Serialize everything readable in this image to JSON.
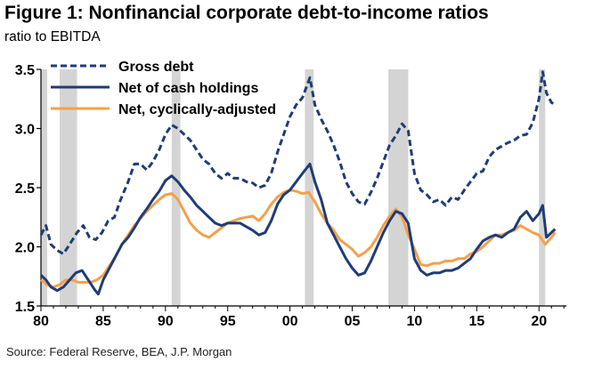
{
  "title": "Figure 1: Nonfinancial corporate debt-to-income ratios",
  "subtitle": "ratio to EBITDA",
  "source": "Source: Federal Reserve, BEA, J.P. Morgan",
  "chart_data": {
    "type": "line",
    "title": "Figure 1: Nonfinancial corporate debt-to-income ratios",
    "ylabel": "ratio to EBITDA",
    "xlim": [
      1980,
      2022.2
    ],
    "ylim": [
      1.5,
      3.5
    ],
    "grid": false,
    "legend_position": "top-left",
    "x_ticks": [
      {
        "value": 1980,
        "label": "80"
      },
      {
        "value": 1985,
        "label": "85"
      },
      {
        "value": 1990,
        "label": "90"
      },
      {
        "value": 1995,
        "label": "95"
      },
      {
        "value": 2000,
        "label": "00"
      },
      {
        "value": 2005,
        "label": "05"
      },
      {
        "value": 2010,
        "label": "10"
      },
      {
        "value": 2015,
        "label": "15"
      },
      {
        "value": 2020,
        "label": "20"
      }
    ],
    "y_ticks": [
      {
        "value": 1.5,
        "label": "1.5"
      },
      {
        "value": 2.0,
        "label": "2.0"
      },
      {
        "value": 2.5,
        "label": "2.5"
      },
      {
        "value": 3.0,
        "label": "3.0"
      },
      {
        "value": 3.5,
        "label": "3.5"
      }
    ],
    "recessions": [
      [
        1980.0,
        1980.5
      ],
      [
        1981.5,
        1982.9
      ],
      [
        1990.5,
        1991.2
      ],
      [
        2001.2,
        2001.9
      ],
      [
        2007.9,
        2009.5
      ],
      [
        2020.0,
        2020.5
      ]
    ],
    "series": [
      {
        "name": "Gross debt",
        "color": "#1f3c78",
        "style": "dashed",
        "points": [
          [
            1980.0,
            2.1
          ],
          [
            1980.4,
            2.18
          ],
          [
            1980.8,
            2.02
          ],
          [
            1981.3,
            1.97
          ],
          [
            1981.8,
            1.94
          ],
          [
            1982.3,
            2.02
          ],
          [
            1982.9,
            2.12
          ],
          [
            1983.4,
            2.18
          ],
          [
            1983.9,
            2.08
          ],
          [
            1984.4,
            2.06
          ],
          [
            1984.9,
            2.12
          ],
          [
            1985.4,
            2.22
          ],
          [
            1985.9,
            2.25
          ],
          [
            1986.4,
            2.4
          ],
          [
            1987.0,
            2.55
          ],
          [
            1987.5,
            2.7
          ],
          [
            1988.0,
            2.7
          ],
          [
            1988.5,
            2.65
          ],
          [
            1989.0,
            2.72
          ],
          [
            1989.5,
            2.82
          ],
          [
            1990.0,
            2.95
          ],
          [
            1990.5,
            3.03
          ],
          [
            1991.0,
            3.0
          ],
          [
            1991.5,
            2.95
          ],
          [
            1992.0,
            2.9
          ],
          [
            1992.5,
            2.82
          ],
          [
            1993.0,
            2.74
          ],
          [
            1993.5,
            2.7
          ],
          [
            1994.0,
            2.62
          ],
          [
            1994.5,
            2.58
          ],
          [
            1995.0,
            2.62
          ],
          [
            1995.5,
            2.58
          ],
          [
            1996.0,
            2.58
          ],
          [
            1996.5,
            2.55
          ],
          [
            1997.0,
            2.54
          ],
          [
            1997.5,
            2.5
          ],
          [
            1998.0,
            2.52
          ],
          [
            1998.5,
            2.62
          ],
          [
            1999.0,
            2.8
          ],
          [
            1999.5,
            2.95
          ],
          [
            2000.0,
            3.1
          ],
          [
            2000.5,
            3.2
          ],
          [
            2001.0,
            3.26
          ],
          [
            2001.6,
            3.43
          ],
          [
            2002.0,
            3.2
          ],
          [
            2002.5,
            3.08
          ],
          [
            2003.0,
            2.98
          ],
          [
            2003.5,
            2.86
          ],
          [
            2004.0,
            2.72
          ],
          [
            2004.5,
            2.55
          ],
          [
            2005.0,
            2.45
          ],
          [
            2005.5,
            2.38
          ],
          [
            2006.0,
            2.36
          ],
          [
            2006.5,
            2.46
          ],
          [
            2007.0,
            2.58
          ],
          [
            2007.5,
            2.72
          ],
          [
            2008.0,
            2.86
          ],
          [
            2008.5,
            2.94
          ],
          [
            2009.0,
            3.04
          ],
          [
            2009.5,
            2.98
          ],
          [
            2010.0,
            2.62
          ],
          [
            2010.5,
            2.48
          ],
          [
            2011.0,
            2.44
          ],
          [
            2011.5,
            2.38
          ],
          [
            2012.0,
            2.4
          ],
          [
            2012.5,
            2.35
          ],
          [
            2013.0,
            2.42
          ],
          [
            2013.5,
            2.4
          ],
          [
            2014.0,
            2.48
          ],
          [
            2014.5,
            2.55
          ],
          [
            2015.0,
            2.62
          ],
          [
            2015.5,
            2.64
          ],
          [
            2016.0,
            2.76
          ],
          [
            2016.5,
            2.82
          ],
          [
            2017.0,
            2.85
          ],
          [
            2017.5,
            2.88
          ],
          [
            2018.0,
            2.9
          ],
          [
            2018.5,
            2.94
          ],
          [
            2019.0,
            2.95
          ],
          [
            2019.5,
            3.05
          ],
          [
            2020.0,
            3.25
          ],
          [
            2020.3,
            3.48
          ],
          [
            2020.6,
            3.3
          ],
          [
            2021.0,
            3.22
          ],
          [
            2021.3,
            3.2
          ]
        ]
      },
      {
        "name": "Net of cash holdings",
        "color": "#1f3c78",
        "style": "solid",
        "points": [
          [
            1980.0,
            1.76
          ],
          [
            1980.4,
            1.72
          ],
          [
            1980.8,
            1.66
          ],
          [
            1981.3,
            1.63
          ],
          [
            1981.8,
            1.66
          ],
          [
            1982.3,
            1.72
          ],
          [
            1982.8,
            1.78
          ],
          [
            1983.3,
            1.8
          ],
          [
            1983.8,
            1.72
          ],
          [
            1984.3,
            1.64
          ],
          [
            1984.6,
            1.6
          ],
          [
            1985.0,
            1.72
          ],
          [
            1985.5,
            1.82
          ],
          [
            1986.0,
            1.92
          ],
          [
            1986.5,
            2.02
          ],
          [
            1987.0,
            2.08
          ],
          [
            1987.5,
            2.16
          ],
          [
            1988.0,
            2.25
          ],
          [
            1988.5,
            2.32
          ],
          [
            1989.0,
            2.4
          ],
          [
            1989.5,
            2.47
          ],
          [
            1990.0,
            2.56
          ],
          [
            1990.5,
            2.6
          ],
          [
            1991.0,
            2.55
          ],
          [
            1991.5,
            2.48
          ],
          [
            1992.0,
            2.42
          ],
          [
            1992.5,
            2.35
          ],
          [
            1993.0,
            2.3
          ],
          [
            1993.5,
            2.25
          ],
          [
            1994.0,
            2.2
          ],
          [
            1994.5,
            2.18
          ],
          [
            1995.0,
            2.2
          ],
          [
            1995.5,
            2.2
          ],
          [
            1996.0,
            2.2
          ],
          [
            1996.5,
            2.17
          ],
          [
            1997.0,
            2.14
          ],
          [
            1997.5,
            2.1
          ],
          [
            1998.0,
            2.12
          ],
          [
            1998.5,
            2.22
          ],
          [
            1999.0,
            2.36
          ],
          [
            1999.5,
            2.44
          ],
          [
            2000.0,
            2.48
          ],
          [
            2000.5,
            2.55
          ],
          [
            2001.0,
            2.62
          ],
          [
            2001.6,
            2.7
          ],
          [
            2002.0,
            2.55
          ],
          [
            2002.5,
            2.4
          ],
          [
            2003.0,
            2.2
          ],
          [
            2003.5,
            2.1
          ],
          [
            2004.0,
            2.0
          ],
          [
            2004.5,
            1.9
          ],
          [
            2005.0,
            1.82
          ],
          [
            2005.5,
            1.76
          ],
          [
            2006.0,
            1.78
          ],
          [
            2006.5,
            1.88
          ],
          [
            2007.0,
            2.0
          ],
          [
            2007.5,
            2.12
          ],
          [
            2008.0,
            2.22
          ],
          [
            2008.5,
            2.3
          ],
          [
            2009.0,
            2.28
          ],
          [
            2009.5,
            2.2
          ],
          [
            2010.0,
            1.9
          ],
          [
            2010.5,
            1.8
          ],
          [
            2011.0,
            1.76
          ],
          [
            2011.5,
            1.78
          ],
          [
            2012.0,
            1.78
          ],
          [
            2012.5,
            1.8
          ],
          [
            2013.0,
            1.8
          ],
          [
            2013.5,
            1.82
          ],
          [
            2014.0,
            1.86
          ],
          [
            2014.5,
            1.9
          ],
          [
            2015.0,
            1.98
          ],
          [
            2015.5,
            2.05
          ],
          [
            2016.0,
            2.08
          ],
          [
            2016.5,
            2.1
          ],
          [
            2017.0,
            2.08
          ],
          [
            2017.5,
            2.12
          ],
          [
            2018.0,
            2.15
          ],
          [
            2018.5,
            2.25
          ],
          [
            2019.0,
            2.3
          ],
          [
            2019.5,
            2.22
          ],
          [
            2020.0,
            2.28
          ],
          [
            2020.3,
            2.35
          ],
          [
            2020.6,
            2.08
          ],
          [
            2021.0,
            2.12
          ],
          [
            2021.3,
            2.15
          ]
        ]
      },
      {
        "name": "Net, cyclically-adjusted",
        "color": "#f5a04a",
        "style": "solid",
        "points": [
          [
            1980.0,
            1.72
          ],
          [
            1980.5,
            1.68
          ],
          [
            1981.0,
            1.66
          ],
          [
            1981.5,
            1.68
          ],
          [
            1982.0,
            1.72
          ],
          [
            1982.5,
            1.72
          ],
          [
            1983.0,
            1.7
          ],
          [
            1983.5,
            1.7
          ],
          [
            1984.0,
            1.7
          ],
          [
            1984.5,
            1.72
          ],
          [
            1985.0,
            1.76
          ],
          [
            1985.5,
            1.84
          ],
          [
            1986.0,
            1.92
          ],
          [
            1986.5,
            2.02
          ],
          [
            1987.0,
            2.1
          ],
          [
            1987.5,
            2.18
          ],
          [
            1988.0,
            2.24
          ],
          [
            1988.5,
            2.3
          ],
          [
            1989.0,
            2.35
          ],
          [
            1989.5,
            2.4
          ],
          [
            1990.0,
            2.44
          ],
          [
            1990.5,
            2.45
          ],
          [
            1991.0,
            2.4
          ],
          [
            1991.5,
            2.3
          ],
          [
            1992.0,
            2.2
          ],
          [
            1992.5,
            2.14
          ],
          [
            1993.0,
            2.1
          ],
          [
            1993.5,
            2.08
          ],
          [
            1994.0,
            2.12
          ],
          [
            1994.5,
            2.16
          ],
          [
            1995.0,
            2.2
          ],
          [
            1995.5,
            2.22
          ],
          [
            1996.0,
            2.24
          ],
          [
            1996.5,
            2.25
          ],
          [
            1997.0,
            2.26
          ],
          [
            1997.5,
            2.22
          ],
          [
            1998.0,
            2.28
          ],
          [
            1998.5,
            2.36
          ],
          [
            1999.0,
            2.42
          ],
          [
            1999.5,
            2.46
          ],
          [
            2000.0,
            2.48
          ],
          [
            2000.5,
            2.47
          ],
          [
            2001.0,
            2.45
          ],
          [
            2001.5,
            2.46
          ],
          [
            2002.0,
            2.38
          ],
          [
            2002.5,
            2.28
          ],
          [
            2003.0,
            2.2
          ],
          [
            2003.5,
            2.14
          ],
          [
            2004.0,
            2.06
          ],
          [
            2004.5,
            2.02
          ],
          [
            2005.0,
            1.98
          ],
          [
            2005.5,
            1.92
          ],
          [
            2006.0,
            1.95
          ],
          [
            2006.5,
            2.0
          ],
          [
            2007.0,
            2.08
          ],
          [
            2007.5,
            2.18
          ],
          [
            2008.0,
            2.26
          ],
          [
            2008.5,
            2.32
          ],
          [
            2009.0,
            2.25
          ],
          [
            2009.5,
            2.1
          ],
          [
            2010.0,
            1.98
          ],
          [
            2010.5,
            1.85
          ],
          [
            2011.0,
            1.84
          ],
          [
            2011.5,
            1.86
          ],
          [
            2012.0,
            1.86
          ],
          [
            2012.5,
            1.88
          ],
          [
            2013.0,
            1.88
          ],
          [
            2013.5,
            1.9
          ],
          [
            2014.0,
            1.9
          ],
          [
            2014.5,
            1.94
          ],
          [
            2015.0,
            1.96
          ],
          [
            2015.5,
            2.0
          ],
          [
            2016.0,
            2.05
          ],
          [
            2016.5,
            2.1
          ],
          [
            2017.0,
            2.1
          ],
          [
            2017.5,
            2.12
          ],
          [
            2018.0,
            2.14
          ],
          [
            2018.5,
            2.18
          ],
          [
            2019.0,
            2.15
          ],
          [
            2019.5,
            2.12
          ],
          [
            2020.0,
            2.1
          ],
          [
            2020.5,
            2.02
          ],
          [
            2021.0,
            2.08
          ],
          [
            2021.3,
            2.12
          ]
        ]
      }
    ]
  }
}
